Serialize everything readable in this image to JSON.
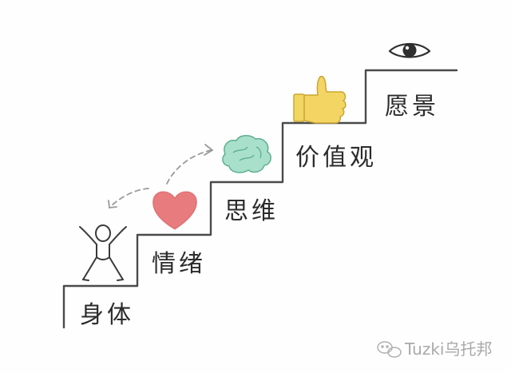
{
  "diagram": {
    "steps": [
      {
        "id": "body",
        "label": "身体",
        "icon": "person-icon"
      },
      {
        "id": "emotion",
        "label": "情绪",
        "icon": "heart-icon"
      },
      {
        "id": "mind",
        "label": "思维",
        "icon": "brain-icon"
      },
      {
        "id": "values",
        "label": "价值观",
        "icon": "thumbs-up-icon"
      },
      {
        "id": "vision",
        "label": "愿景",
        "icon": "eye-icon"
      }
    ],
    "colors": {
      "stair_line": "#4a4a4a",
      "heart": "#e46466",
      "brain": "#7fcbb0",
      "thumb": "#f0cf55",
      "eye": "#2f2f2f"
    }
  },
  "watermark": {
    "text": "Tuzki乌托邦"
  }
}
